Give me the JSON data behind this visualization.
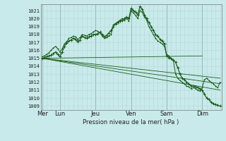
{
  "background_color": "#c8eaea",
  "grid_color_minor": "#b8d8d8",
  "grid_color_major_x": "#99bbbb",
  "line_color": "#1a5c1a",
  "ylabel": "Pression niveau de la mer( hPa )",
  "ylim": [
    1008.5,
    1021.8
  ],
  "yticks": [
    1009,
    1010,
    1011,
    1012,
    1013,
    1014,
    1015,
    1016,
    1017,
    1018,
    1019,
    1020,
    1021
  ],
  "x_day_labels": [
    "Mer",
    "Lun",
    "Jeu",
    "Ven",
    "Sam",
    "Dim"
  ],
  "x_day_positions": [
    0,
    24,
    72,
    120,
    168,
    216
  ],
  "xlim": [
    -2,
    242
  ],
  "series": {
    "main": {
      "x": [
        0,
        3,
        6,
        9,
        12,
        15,
        18,
        21,
        24,
        27,
        30,
        33,
        36,
        39,
        42,
        45,
        48,
        51,
        54,
        57,
        60,
        63,
        66,
        69,
        72,
        75,
        78,
        81,
        84,
        87,
        90,
        93,
        96,
        99,
        102,
        105,
        108,
        111,
        114,
        117,
        120,
        123,
        126,
        129,
        132,
        135,
        138,
        141,
        144,
        147,
        150,
        153,
        156,
        159,
        162,
        165,
        168,
        171,
        174,
        177,
        180,
        183,
        186,
        189,
        192,
        195,
        198,
        201,
        204,
        207,
        210,
        213,
        216,
        219,
        222,
        225,
        228,
        231,
        234,
        237,
        240
      ],
      "y": [
        1015.0,
        1015.1,
        1015.2,
        1015.3,
        1015.4,
        1015.6,
        1015.8,
        1015.5,
        1015.2,
        1015.8,
        1016.5,
        1016.9,
        1017.2,
        1017.3,
        1017.5,
        1017.4,
        1017.1,
        1017.3,
        1017.8,
        1017.6,
        1017.5,
        1017.7,
        1017.8,
        1018.0,
        1018.0,
        1018.1,
        1018.3,
        1018.0,
        1017.7,
        1017.9,
        1018.2,
        1018.5,
        1019.0,
        1019.3,
        1019.5,
        1019.7,
        1019.8,
        1020.0,
        1020.2,
        1020.0,
        1021.3,
        1021.0,
        1020.8,
        1020.5,
        1021.5,
        1021.2,
        1020.5,
        1020.0,
        1019.5,
        1019.0,
        1018.5,
        1018.0,
        1017.8,
        1017.4,
        1017.2,
        1016.8,
        1015.3,
        1015.1,
        1015.0,
        1014.8,
        1014.5,
        1013.8,
        1013.0,
        1012.5,
        1012.3,
        1012.0,
        1011.8,
        1011.5,
        1011.5,
        1011.4,
        1011.3,
        1011.2,
        1011.0,
        1010.5,
        1010.0,
        1009.8,
        1009.5,
        1009.3,
        1009.2,
        1009.1,
        1009.0
      ]
    },
    "line1": {
      "x": [
        0,
        240
      ],
      "y": [
        1015.0,
        1011.0
      ]
    },
    "line2": {
      "x": [
        0,
        240
      ],
      "y": [
        1015.0,
        1011.8
      ]
    },
    "line3": {
      "x": [
        0,
        240
      ],
      "y": [
        1015.0,
        1012.5
      ]
    },
    "line4": {
      "x": [
        0,
        216
      ],
      "y": [
        1015.0,
        1015.3
      ]
    },
    "upper_detail": {
      "x": [
        0,
        3,
        6,
        9,
        12,
        15,
        18,
        21,
        24,
        27,
        30,
        33,
        36,
        39,
        42,
        45,
        48,
        51,
        54,
        57,
        60,
        63,
        66,
        69,
        72,
        75,
        78,
        81,
        84,
        87,
        90,
        93,
        96,
        99,
        102,
        105,
        108,
        111,
        114,
        117,
        120,
        123,
        126,
        129,
        132,
        135,
        138,
        141,
        144,
        147,
        150,
        153,
        156,
        159,
        162,
        165,
        168,
        171,
        174,
        177,
        180,
        183,
        186,
        189,
        192,
        195,
        198,
        201,
        204,
        207,
        210,
        213,
        216,
        219,
        222,
        225,
        228,
        231,
        234,
        237,
        240
      ],
      "y": [
        1015.2,
        1015.3,
        1015.5,
        1015.7,
        1016.0,
        1016.3,
        1016.5,
        1016.2,
        1015.8,
        1016.2,
        1016.8,
        1017.1,
        1017.5,
        1017.6,
        1017.8,
        1017.7,
        1017.4,
        1017.6,
        1018.0,
        1017.9,
        1017.8,
        1018.0,
        1018.1,
        1018.3,
        1018.5,
        1018.4,
        1018.2,
        1017.8,
        1017.5,
        1017.6,
        1017.8,
        1018.0,
        1019.2,
        1019.4,
        1019.6,
        1019.8,
        1020.0,
        1019.8,
        1020.0,
        1019.7,
        1021.0,
        1020.7,
        1020.4,
        1020.0,
        1021.0,
        1020.8,
        1020.2,
        1019.8,
        1019.0,
        1018.5,
        1018.0,
        1017.5,
        1017.2,
        1017.0,
        1016.8,
        1016.5,
        1015.5,
        1015.3,
        1015.0,
        1014.7,
        1013.0,
        1012.5,
        1012.2,
        1012.0,
        1011.8,
        1011.5,
        1011.4,
        1011.2,
        1011.3,
        1011.2,
        1011.0,
        1010.9,
        1011.3,
        1012.3,
        1012.5,
        1012.2,
        1012.0,
        1011.8,
        1011.5,
        1011.3,
        1012.0
      ]
    }
  }
}
